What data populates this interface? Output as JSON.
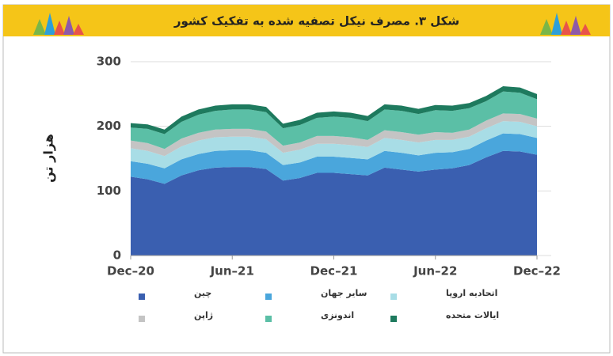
{
  "chart_data": {
    "type": "area",
    "stacked": true,
    "title": "شکل ۳. مصرف نیکل تصفیه شده به تفکیک کشور",
    "y_label": "هزار تن",
    "categories": [
      "Dec–20",
      null,
      null,
      null,
      null,
      null,
      "Jun–21",
      null,
      null,
      null,
      null,
      null,
      "Dec–21",
      null,
      null,
      null,
      null,
      null,
      "Jun–22",
      null,
      null,
      null,
      null,
      null,
      "Dec–22"
    ],
    "ylim": [
      0,
      300
    ],
    "yticks": [
      0,
      100,
      200,
      300
    ],
    "grid": true,
    "series": [
      {
        "name": "چین",
        "color": "#3a5fb0",
        "values": [
          122,
          118,
          111,
          124,
          132,
          136,
          137,
          137,
          134,
          116,
          120,
          128,
          128,
          126,
          124,
          136,
          133,
          130,
          133,
          135,
          140,
          152,
          162,
          161,
          156
        ]
      },
      {
        "name": "سایر جهان",
        "color": "#4aa6dc",
        "values": [
          24,
          24,
          24,
          25,
          25,
          26,
          26,
          26,
          25,
          24,
          24,
          25,
          25,
          25,
          25,
          26,
          26,
          25,
          26,
          25,
          25,
          26,
          27,
          27,
          26
        ]
      },
      {
        "name": "اتحادیه اروپا",
        "color": "#a8dde6",
        "values": [
          20,
          20,
          19,
          20,
          21,
          21,
          21,
          21,
          21,
          19,
          20,
          20,
          20,
          20,
          19,
          20,
          20,
          20,
          20,
          19,
          19,
          19,
          19,
          19,
          18
        ]
      },
      {
        "name": "ژاپن",
        "color": "#c4c4c4",
        "values": [
          12,
          12,
          11,
          12,
          12,
          12,
          12,
          12,
          12,
          11,
          11,
          12,
          12,
          12,
          11,
          12,
          12,
          12,
          12,
          11,
          11,
          12,
          12,
          12,
          12
        ]
      },
      {
        "name": "اندونزی",
        "color": "#5bbfa6",
        "values": [
          20,
          22,
          23,
          26,
          28,
          29,
          30,
          30,
          30,
          27,
          27,
          28,
          30,
          30,
          29,
          32,
          33,
          32,
          34,
          34,
          33,
          30,
          34,
          33,
          30
        ]
      },
      {
        "name": "ایالات متحده",
        "color": "#1e7a5e",
        "values": [
          7,
          7,
          7,
          8,
          8,
          8,
          8,
          8,
          8,
          7,
          8,
          8,
          8,
          8,
          8,
          8,
          8,
          8,
          8,
          8,
          8,
          8,
          8,
          8,
          8
        ]
      }
    ]
  }
}
